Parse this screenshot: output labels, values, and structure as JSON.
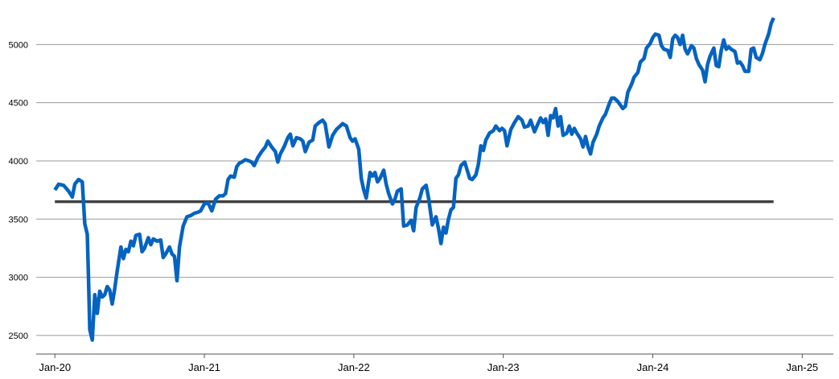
{
  "chart_data": {
    "type": "line",
    "title": "",
    "xlabel": "",
    "ylabel": "",
    "xlim": [
      -1.5,
      62.5
    ],
    "ylim": [
      2340,
      5300
    ],
    "yticks": [
      2500,
      3000,
      3500,
      4000,
      4500,
      5000
    ],
    "xticks": [
      {
        "month": 0,
        "label": "Jan-20"
      },
      {
        "month": 12,
        "label": "Jan-21"
      },
      {
        "month": 24,
        "label": "Jan-22"
      },
      {
        "month": 36,
        "label": "Jan-23"
      },
      {
        "month": 48,
        "label": "Jan-24"
      },
      {
        "month": 60,
        "label": "Jan-25"
      }
    ],
    "grid": true,
    "legend": "none",
    "series": [
      {
        "color": "#0563C1",
        "points": [
          [
            0,
            3750
          ],
          [
            0.3,
            3800
          ],
          [
            0.7,
            3790
          ],
          [
            1.1,
            3740
          ],
          [
            1.4,
            3690
          ],
          [
            1.6,
            3800
          ],
          [
            1.9,
            3840
          ],
          [
            2.2,
            3820
          ],
          [
            2.4,
            3460
          ],
          [
            2.6,
            3370
          ],
          [
            2.7,
            3000
          ],
          [
            2.8,
            2550
          ],
          [
            3.0,
            2460
          ],
          [
            3.2,
            2850
          ],
          [
            3.4,
            2690
          ],
          [
            3.6,
            2880
          ],
          [
            3.8,
            2830
          ],
          [
            4.0,
            2850
          ],
          [
            4.2,
            2920
          ],
          [
            4.4,
            2890
          ],
          [
            4.6,
            2770
          ],
          [
            4.8,
            2900
          ],
          [
            5.0,
            3050
          ],
          [
            5.3,
            3260
          ],
          [
            5.5,
            3160
          ],
          [
            5.7,
            3240
          ],
          [
            5.9,
            3220
          ],
          [
            6.1,
            3310
          ],
          [
            6.3,
            3270
          ],
          [
            6.5,
            3360
          ],
          [
            6.8,
            3370
          ],
          [
            7.0,
            3220
          ],
          [
            7.2,
            3250
          ],
          [
            7.5,
            3340
          ],
          [
            7.7,
            3280
          ],
          [
            7.9,
            3330
          ],
          [
            8.2,
            3310
          ],
          [
            8.5,
            3320
          ],
          [
            8.7,
            3170
          ],
          [
            8.9,
            3200
          ],
          [
            9.2,
            3260
          ],
          [
            9.4,
            3200
          ],
          [
            9.6,
            3180
          ],
          [
            9.8,
            2970
          ],
          [
            10.0,
            3260
          ],
          [
            10.3,
            3440
          ],
          [
            10.6,
            3520
          ],
          [
            10.9,
            3530
          ],
          [
            11.2,
            3550
          ],
          [
            11.5,
            3560
          ],
          [
            11.7,
            3570
          ],
          [
            12.0,
            3630
          ],
          [
            12.3,
            3640
          ],
          [
            12.6,
            3570
          ],
          [
            12.9,
            3670
          ],
          [
            13.2,
            3700
          ],
          [
            13.5,
            3700
          ],
          [
            13.7,
            3720
          ],
          [
            13.9,
            3840
          ],
          [
            14.1,
            3870
          ],
          [
            14.4,
            3860
          ],
          [
            14.6,
            3950
          ],
          [
            14.8,
            3980
          ],
          [
            15.0,
            3990
          ],
          [
            15.3,
            4010
          ],
          [
            15.6,
            4000
          ],
          [
            15.8,
            3990
          ],
          [
            16.0,
            3960
          ],
          [
            16.3,
            4030
          ],
          [
            16.6,
            4080
          ],
          [
            16.9,
            4120
          ],
          [
            17.1,
            4170
          ],
          [
            17.4,
            4120
          ],
          [
            17.7,
            4080
          ],
          [
            17.9,
            3990
          ],
          [
            18.1,
            4060
          ],
          [
            18.4,
            4120
          ],
          [
            18.7,
            4200
          ],
          [
            18.9,
            4230
          ],
          [
            19.1,
            4130
          ],
          [
            19.4,
            4200
          ],
          [
            19.7,
            4190
          ],
          [
            19.9,
            4170
          ],
          [
            20.1,
            4080
          ],
          [
            20.4,
            4160
          ],
          [
            20.7,
            4180
          ],
          [
            20.9,
            4300
          ],
          [
            21.2,
            4330
          ],
          [
            21.5,
            4350
          ],
          [
            21.7,
            4320
          ],
          [
            22.0,
            4120
          ],
          [
            22.3,
            4220
          ],
          [
            22.6,
            4270
          ],
          [
            22.9,
            4300
          ],
          [
            23.1,
            4320
          ],
          [
            23.4,
            4300
          ],
          [
            23.7,
            4200
          ],
          [
            23.9,
            4170
          ],
          [
            24.1,
            4190
          ],
          [
            24.4,
            4100
          ],
          [
            24.6,
            3850
          ],
          [
            24.8,
            3750
          ],
          [
            25.0,
            3680
          ],
          [
            25.3,
            3900
          ],
          [
            25.5,
            3870
          ],
          [
            25.7,
            3900
          ],
          [
            25.9,
            3820
          ],
          [
            26.1,
            3850
          ],
          [
            26.4,
            3920
          ],
          [
            26.6,
            3800
          ],
          [
            26.8,
            3720
          ],
          [
            27.1,
            3630
          ],
          [
            27.3,
            3670
          ],
          [
            27.5,
            3740
          ],
          [
            27.8,
            3760
          ],
          [
            28.0,
            3440
          ],
          [
            28.3,
            3450
          ],
          [
            28.6,
            3490
          ],
          [
            28.8,
            3400
          ],
          [
            29.0,
            3600
          ],
          [
            29.3,
            3680
          ],
          [
            29.5,
            3760
          ],
          [
            29.8,
            3790
          ],
          [
            30.0,
            3680
          ],
          [
            30.3,
            3450
          ],
          [
            30.6,
            3520
          ],
          [
            30.8,
            3420
          ],
          [
            31.0,
            3290
          ],
          [
            31.2,
            3430
          ],
          [
            31.4,
            3380
          ],
          [
            31.6,
            3500
          ],
          [
            31.8,
            3580
          ],
          [
            32.0,
            3600
          ],
          [
            32.2,
            3850
          ],
          [
            32.4,
            3880
          ],
          [
            32.6,
            3960
          ],
          [
            32.9,
            3990
          ],
          [
            33.1,
            3920
          ],
          [
            33.3,
            3850
          ],
          [
            33.5,
            3840
          ],
          [
            33.8,
            3880
          ],
          [
            34.0,
            3970
          ],
          [
            34.2,
            4130
          ],
          [
            34.4,
            4090
          ],
          [
            34.6,
            4180
          ],
          [
            34.9,
            4240
          ],
          [
            35.2,
            4260
          ],
          [
            35.4,
            4300
          ],
          [
            35.7,
            4260
          ],
          [
            35.9,
            4280
          ],
          [
            36.1,
            4260
          ],
          [
            36.3,
            4130
          ],
          [
            36.6,
            4270
          ],
          [
            36.9,
            4330
          ],
          [
            37.2,
            4380
          ],
          [
            37.5,
            4350
          ],
          [
            37.7,
            4290
          ],
          [
            38.0,
            4300
          ],
          [
            38.2,
            4350
          ],
          [
            38.5,
            4250
          ],
          [
            38.7,
            4300
          ],
          [
            39.0,
            4370
          ],
          [
            39.2,
            4330
          ],
          [
            39.4,
            4360
          ],
          [
            39.6,
            4220
          ],
          [
            39.8,
            4390
          ],
          [
            40.0,
            4370
          ],
          [
            40.2,
            4450
          ],
          [
            40.4,
            4300
          ],
          [
            40.6,
            4380
          ],
          [
            40.8,
            4220
          ],
          [
            41.1,
            4240
          ],
          [
            41.3,
            4300
          ],
          [
            41.5,
            4230
          ],
          [
            41.7,
            4280
          ],
          [
            41.9,
            4240
          ],
          [
            42.2,
            4190
          ],
          [
            42.4,
            4120
          ],
          [
            42.6,
            4210
          ],
          [
            42.8,
            4120
          ],
          [
            43.0,
            4060
          ],
          [
            43.2,
            4160
          ],
          [
            43.5,
            4230
          ],
          [
            43.7,
            4300
          ],
          [
            44.0,
            4370
          ],
          [
            44.2,
            4400
          ],
          [
            44.5,
            4490
          ],
          [
            44.7,
            4540
          ],
          [
            44.9,
            4540
          ],
          [
            45.2,
            4510
          ],
          [
            45.4,
            4480
          ],
          [
            45.6,
            4450
          ],
          [
            45.8,
            4470
          ],
          [
            46.0,
            4590
          ],
          [
            46.3,
            4660
          ],
          [
            46.5,
            4720
          ],
          [
            46.8,
            4760
          ],
          [
            47.0,
            4850
          ],
          [
            47.3,
            4880
          ],
          [
            47.5,
            4970
          ],
          [
            47.8,
            5010
          ],
          [
            48.0,
            5060
          ],
          [
            48.2,
            5090
          ],
          [
            48.5,
            5080
          ],
          [
            48.7,
            4990
          ],
          [
            48.9,
            4960
          ],
          [
            49.2,
            4950
          ],
          [
            49.4,
            4890
          ],
          [
            49.6,
            5050
          ],
          [
            49.8,
            5080
          ],
          [
            50.0,
            5060
          ],
          [
            50.2,
            5000
          ],
          [
            50.4,
            5080
          ],
          [
            50.6,
            4960
          ],
          [
            50.8,
            4920
          ],
          [
            51.1,
            4990
          ],
          [
            51.3,
            4970
          ],
          [
            51.5,
            4880
          ],
          [
            51.7,
            4830
          ],
          [
            52.0,
            4780
          ],
          [
            52.2,
            4680
          ],
          [
            52.4,
            4830
          ],
          [
            52.6,
            4900
          ],
          [
            52.9,
            4970
          ],
          [
            53.1,
            4820
          ],
          [
            53.3,
            4810
          ],
          [
            53.5,
            4950
          ],
          [
            53.7,
            5040
          ],
          [
            53.9,
            4960
          ],
          [
            54.1,
            4980
          ],
          [
            54.3,
            4960
          ],
          [
            54.6,
            4940
          ],
          [
            54.8,
            4840
          ],
          [
            55.0,
            4850
          ],
          [
            55.2,
            4820
          ],
          [
            55.4,
            4770
          ],
          [
            55.7,
            4770
          ],
          [
            55.9,
            4960
          ],
          [
            56.1,
            4970
          ],
          [
            56.3,
            4890
          ],
          [
            56.6,
            4870
          ],
          [
            56.8,
            4920
          ],
          [
            57.0,
            5000
          ],
          [
            57.3,
            5090
          ],
          [
            57.5,
            5180
          ],
          [
            57.7,
            5230
          ]
        ]
      },
      {
        "color": "#404040",
        "points": [
          [
            0,
            3650
          ],
          [
            57.7,
            3650
          ]
        ]
      }
    ]
  }
}
